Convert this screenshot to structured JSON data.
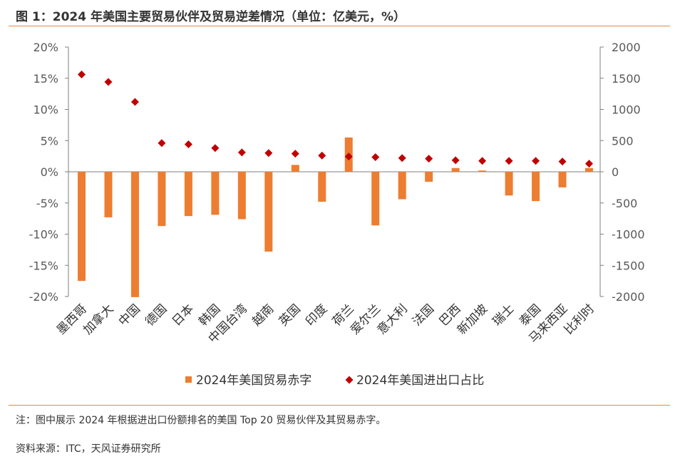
{
  "title": "图 1：2024 年美国主要贸易伙伴及贸易逆差情况（单位：亿美元，%）",
  "note": "注：图中展示 2024 年根据进出口份额排名的美国 Top 20 贸易伙伴及其贸易赤字。",
  "source": "资料来源：ITC，天风证券研究所",
  "colors": {
    "bar": "#ed7d31",
    "marker": "#c00000",
    "axis": "#7f7f7f",
    "rule": "#e58a44"
  },
  "chart_data": {
    "type": "bar",
    "categories": [
      "墨西哥",
      "加拿大",
      "中国",
      "德国",
      "日本",
      "韩国",
      "中国台湾",
      "越南",
      "英国",
      "印度",
      "荷兰",
      "爱尔兰",
      "意大利",
      "法国",
      "巴西",
      "新加坡",
      "瑞士",
      "泰国",
      "马来西亚",
      "比利时"
    ],
    "series": [
      {
        "name": "2024年美国贸易赤字",
        "axis": "left",
        "values": [
          -17.5,
          -7.3,
          -20.1,
          -8.7,
          -7.1,
          -6.9,
          -7.6,
          -12.8,
          1.1,
          -4.8,
          5.5,
          -8.6,
          -4.4,
          -1.6,
          0.6,
          0.2,
          -3.8,
          -4.7,
          -2.5,
          0.6
        ]
      },
      {
        "name": "2024年美国进出口占比",
        "axis": "right",
        "values": [
          1560,
          1440,
          1120,
          460,
          440,
          380,
          310,
          300,
          290,
          260,
          245,
          235,
          220,
          210,
          185,
          175,
          175,
          175,
          165,
          130
        ]
      }
    ],
    "y_left": {
      "min": -20,
      "max": 20,
      "ticks": [
        20,
        15,
        10,
        5,
        0,
        -5,
        -10,
        -15,
        -20
      ],
      "tick_labels": [
        "20%",
        "15%",
        "10%",
        "5%",
        "0%",
        "-5%",
        "-10%",
        "-15%",
        "-20%"
      ]
    },
    "y_right": {
      "min": -2000,
      "max": 2000,
      "ticks": [
        2000,
        1500,
        1000,
        500,
        0,
        -500,
        -1000,
        -1500,
        -2000
      ],
      "tick_labels": [
        "2000",
        "1500",
        "1000",
        "500",
        "0",
        "-500",
        "-1000",
        "-1500",
        "-2000"
      ]
    },
    "legend": [
      "2024年美国贸易赤字",
      "2024年美国进出口占比"
    ],
    "legend_position": "bottom"
  }
}
